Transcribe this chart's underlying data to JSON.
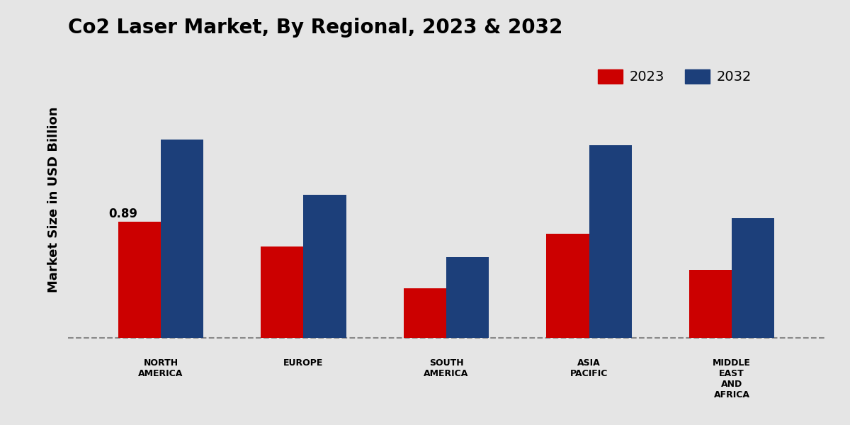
{
  "title": "Co2 Laser Market, By Regional, 2023 & 2032",
  "ylabel": "Market Size in USD Billion",
  "categories": [
    "NORTH\nAMERICA",
    "EUROPE",
    "SOUTH\nAMERICA",
    "ASIA\nPACIFIC",
    "MIDDLE\nEAST\nAND\nAFRICA"
  ],
  "values_2023": [
    0.89,
    0.7,
    0.38,
    0.8,
    0.52
  ],
  "values_2032": [
    1.52,
    1.1,
    0.62,
    1.48,
    0.92
  ],
  "color_2023": "#cc0000",
  "color_2032": "#1c3f7a",
  "bar_annotation": "0.89",
  "bar_annotation_index": 0,
  "background_color": "#e5e5e5",
  "legend_labels": [
    "2023",
    "2032"
  ],
  "bar_width": 0.3,
  "title_fontsize": 20,
  "ylabel_fontsize": 13,
  "tick_fontsize": 9,
  "legend_fontsize": 14,
  "annotation_fontsize": 12
}
